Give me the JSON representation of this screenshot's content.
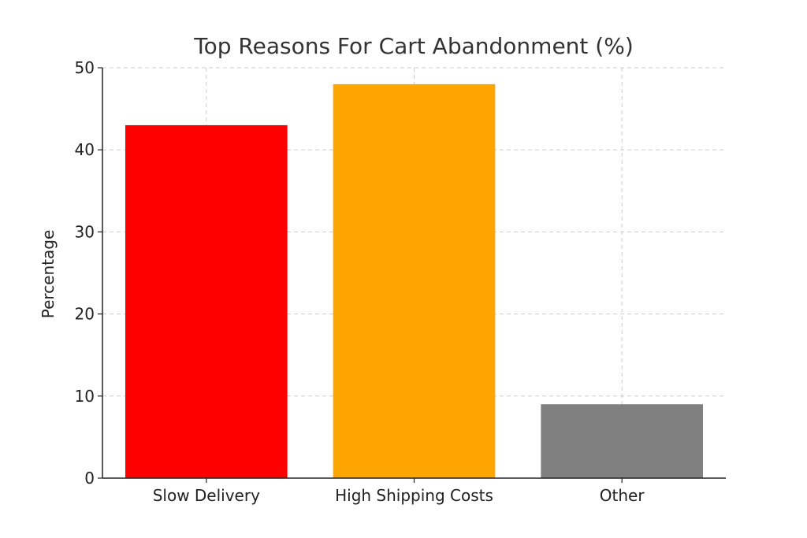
{
  "chart_data": {
    "type": "bar",
    "title": "Top Reasons For Cart Abandonment (%)",
    "xlabel": "",
    "ylabel": "Percentage",
    "categories": [
      "Slow Delivery",
      "High Shipping Costs",
      "Other"
    ],
    "values": [
      43,
      48,
      9
    ],
    "colors": [
      "#ff0000",
      "#ffa500",
      "#808080"
    ],
    "ylim": [
      0,
      50
    ],
    "yticks": [
      0,
      10,
      20,
      30,
      40,
      50
    ],
    "grid": true
  }
}
